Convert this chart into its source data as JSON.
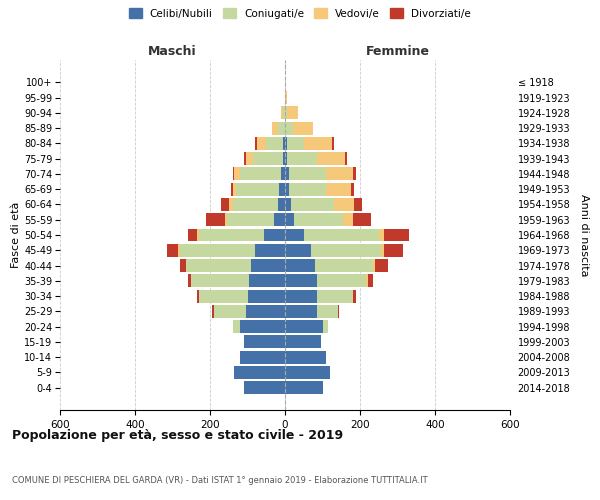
{
  "age_groups": [
    "0-4",
    "5-9",
    "10-14",
    "15-19",
    "20-24",
    "25-29",
    "30-34",
    "35-39",
    "40-44",
    "45-49",
    "50-54",
    "55-59",
    "60-64",
    "65-69",
    "70-74",
    "75-79",
    "80-84",
    "85-89",
    "90-94",
    "95-99",
    "100+"
  ],
  "birth_years": [
    "2014-2018",
    "2009-2013",
    "2004-2008",
    "1999-2003",
    "1994-1998",
    "1989-1993",
    "1984-1988",
    "1979-1983",
    "1974-1978",
    "1969-1973",
    "1964-1968",
    "1959-1963",
    "1954-1958",
    "1949-1953",
    "1944-1948",
    "1939-1943",
    "1934-1938",
    "1929-1933",
    "1924-1928",
    "1919-1923",
    "≤ 1918"
  ],
  "males": {
    "celibi": [
      110,
      135,
      120,
      110,
      120,
      105,
      100,
      95,
      90,
      80,
      55,
      30,
      20,
      15,
      10,
      5,
      5,
      0,
      0,
      0,
      0
    ],
    "coniugati": [
      0,
      0,
      0,
      0,
      20,
      85,
      130,
      155,
      175,
      200,
      175,
      125,
      120,
      115,
      110,
      80,
      45,
      20,
      5,
      0,
      0
    ],
    "vedovi": [
      0,
      0,
      0,
      0,
      0,
      0,
      0,
      0,
      0,
      5,
      5,
      5,
      10,
      10,
      15,
      20,
      25,
      15,
      5,
      0,
      0
    ],
    "divorziati": [
      0,
      0,
      0,
      0,
      0,
      5,
      5,
      10,
      15,
      30,
      25,
      50,
      20,
      5,
      5,
      5,
      5,
      0,
      0,
      0,
      0
    ]
  },
  "females": {
    "nubili": [
      100,
      120,
      110,
      95,
      100,
      85,
      85,
      85,
      80,
      70,
      50,
      25,
      15,
      10,
      10,
      5,
      5,
      0,
      0,
      0,
      0
    ],
    "coniugate": [
      0,
      0,
      0,
      0,
      15,
      55,
      95,
      130,
      155,
      185,
      200,
      130,
      115,
      100,
      100,
      80,
      45,
      20,
      5,
      0,
      0
    ],
    "vedove": [
      0,
      0,
      0,
      0,
      0,
      0,
      0,
      5,
      5,
      10,
      15,
      25,
      55,
      65,
      70,
      75,
      75,
      55,
      30,
      5,
      0
    ],
    "divorziate": [
      0,
      0,
      0,
      0,
      0,
      5,
      10,
      15,
      35,
      50,
      65,
      50,
      20,
      10,
      10,
      5,
      5,
      0,
      0,
      0,
      0
    ]
  },
  "colors": {
    "celibi": "#4472a8",
    "coniugati": "#c5d8a0",
    "vedovi": "#f5c87a",
    "divorziati": "#c0392b"
  },
  "title": "Popolazione per età, sesso e stato civile - 2019",
  "subtitle": "COMUNE DI PESCHIERA DEL GARDA (VR) - Dati ISTAT 1° gennaio 2019 - Elaborazione TUTTITALIA.IT",
  "xlabel_left": "Maschi",
  "xlabel_right": "Femmine",
  "ylabel_left": "Fasce di età",
  "ylabel_right": "Anni di nascita",
  "legend_labels": [
    "Celibi/Nubili",
    "Coniugati/e",
    "Vedovi/e",
    "Divorziati/e"
  ],
  "xlim": 600,
  "bg_color": "#ffffff",
  "grid_color": "#cccccc"
}
